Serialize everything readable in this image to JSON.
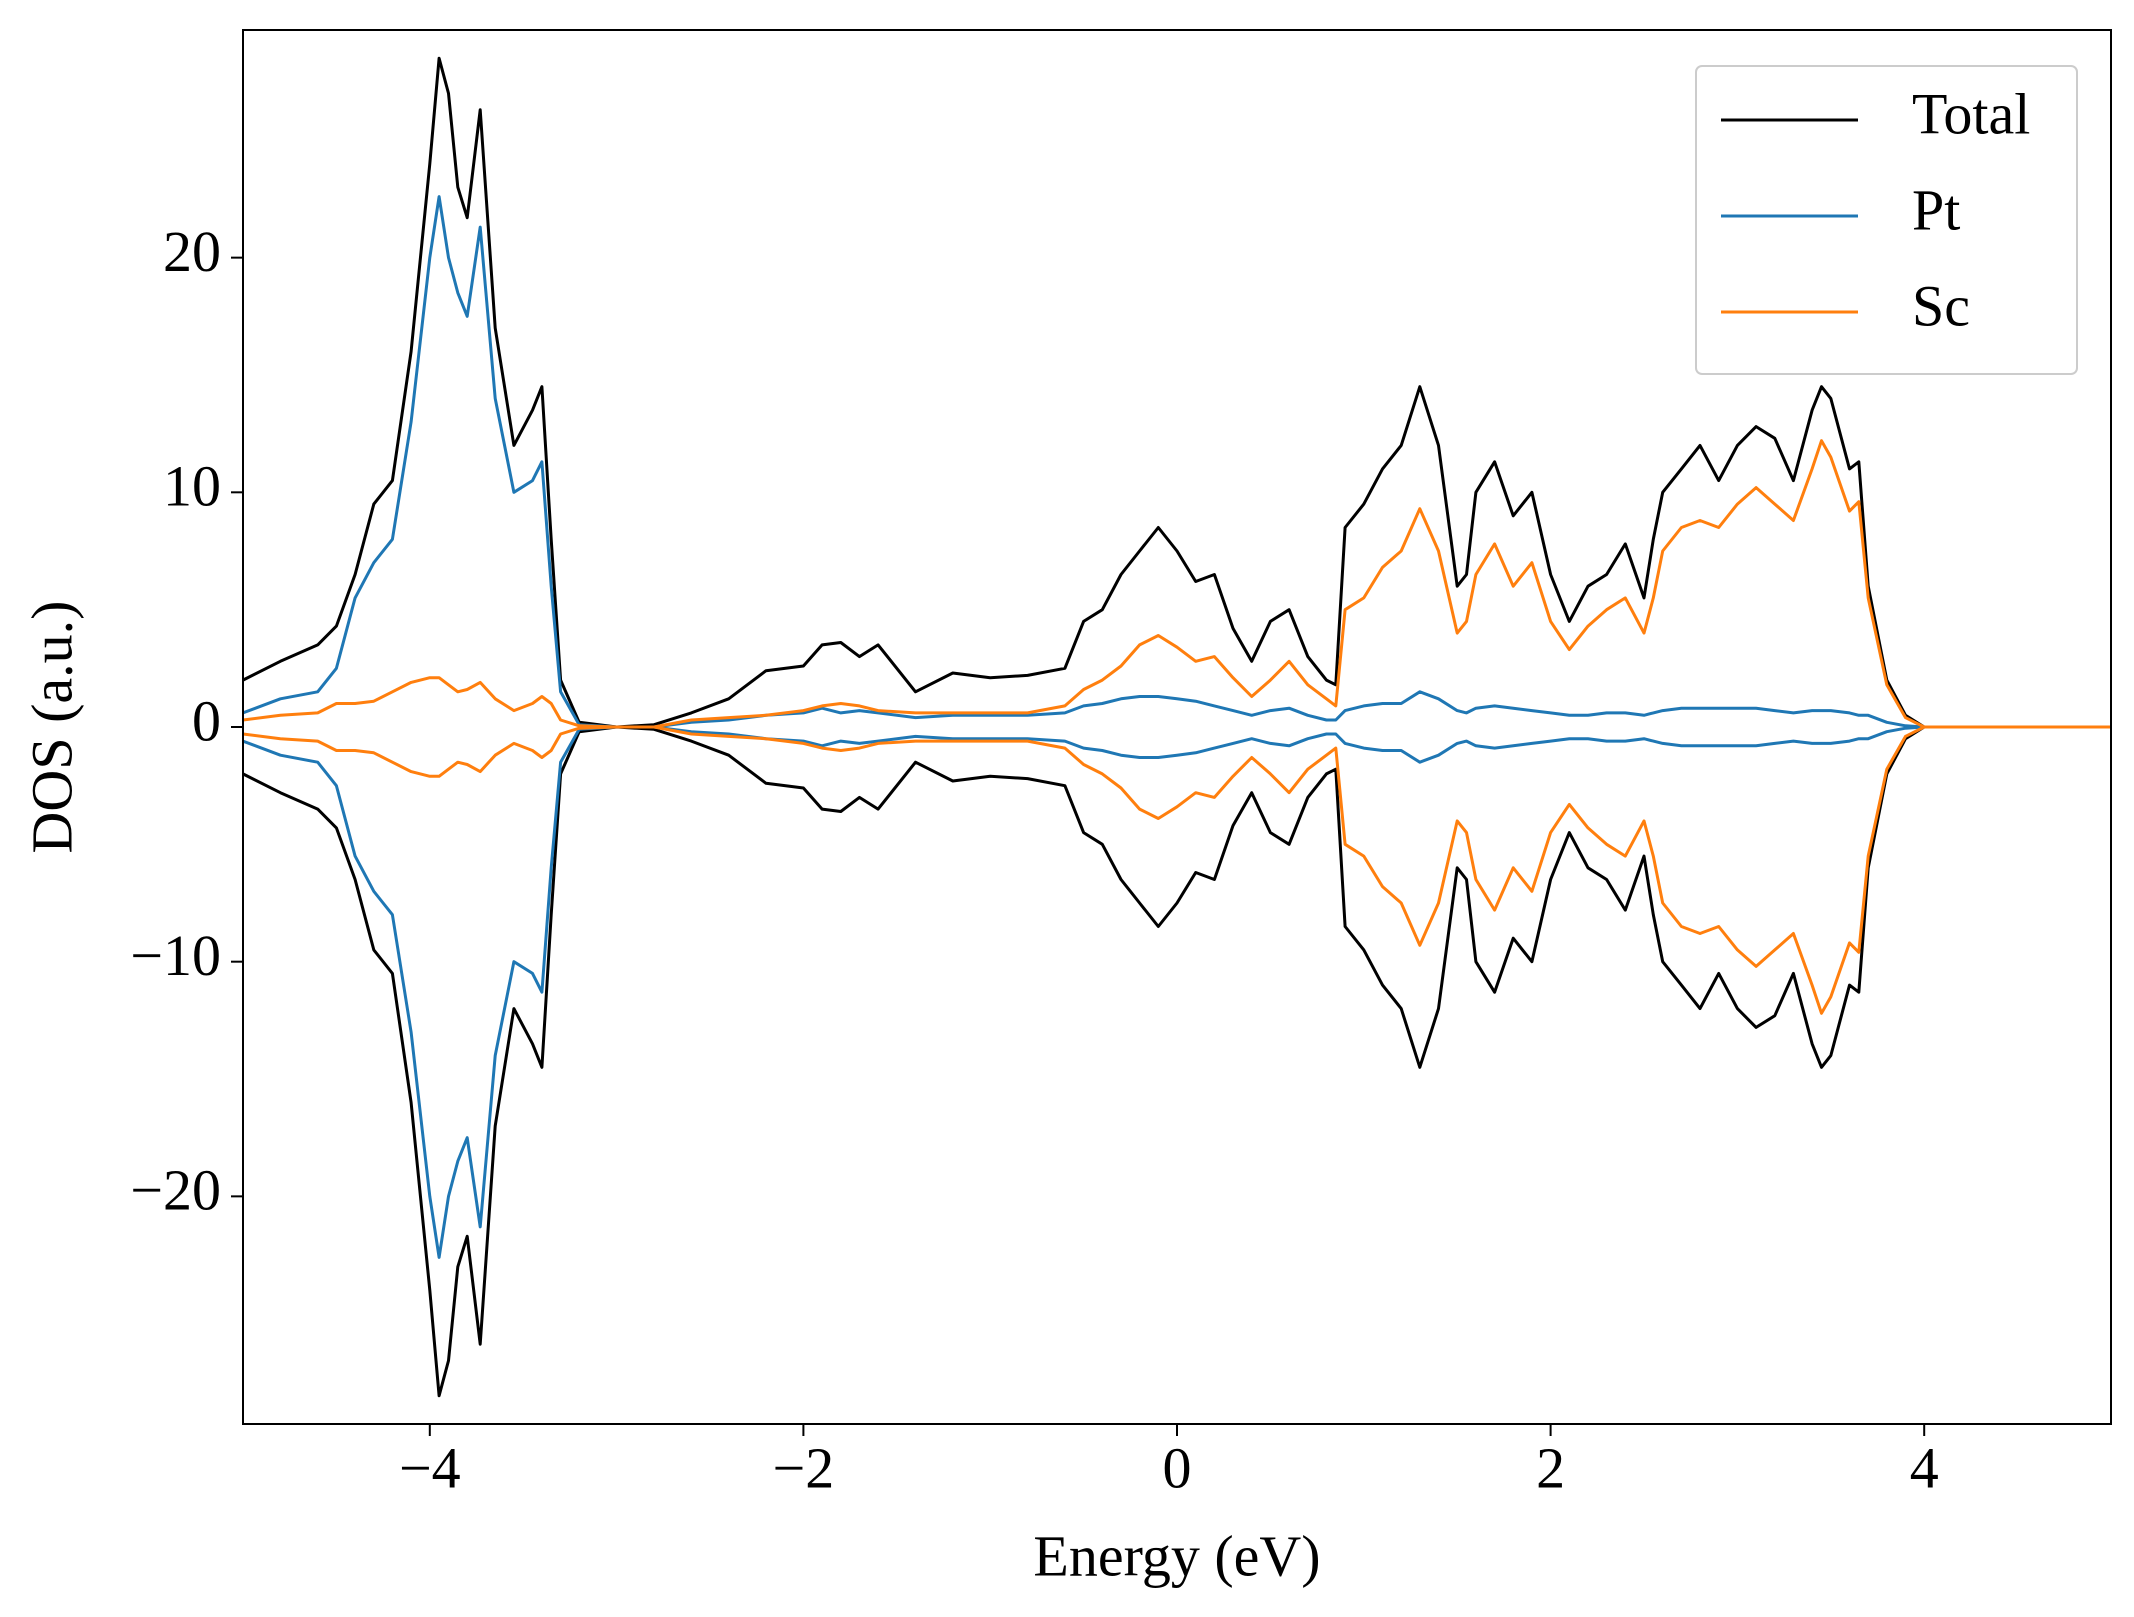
{
  "chart_data": {
    "type": "line",
    "xlabel": "Energy (eV)",
    "ylabel": "DOS (a.u.)",
    "x": [
      -5,
      -4.8,
      -4.6,
      -4.5,
      -4.4,
      -4.3,
      -4.2,
      -4.1,
      -4.0,
      -3.95,
      -3.9,
      -3.85,
      -3.8,
      -3.73,
      -3.65,
      -3.55,
      -3.45,
      -3.4,
      -3.35,
      -3.3,
      -3.2,
      -3.0,
      -2.8,
      -2.6,
      -2.4,
      -2.2,
      -2.0,
      -1.9,
      -1.8,
      -1.7,
      -1.6,
      -1.4,
      -1.2,
      -1.0,
      -0.8,
      -0.6,
      -0.5,
      -0.4,
      -0.3,
      -0.2,
      -0.1,
      0,
      0.1,
      0.2,
      0.3,
      0.4,
      0.5,
      0.6,
      0.7,
      0.8,
      0.85,
      0.9,
      1.0,
      1.1,
      1.2,
      1.3,
      1.4,
      1.5,
      1.55,
      1.6,
      1.7,
      1.8,
      1.9,
      2.0,
      2.1,
      2.2,
      2.3,
      2.4,
      2.5,
      2.55,
      2.6,
      2.7,
      2.8,
      2.9,
      3.0,
      3.1,
      3.2,
      3.3,
      3.4,
      3.45,
      3.5,
      3.6,
      3.65,
      3.7,
      3.8,
      3.9,
      4.0,
      4.2,
      5.0
    ],
    "series": [
      {
        "name": "Total",
        "color": "#000000",
        "values": [
          2.0,
          2.8,
          3.5,
          4.3,
          6.5,
          9.5,
          10.5,
          16,
          24,
          28.5,
          27,
          23,
          21.7,
          26.3,
          17,
          12,
          13.5,
          14.5,
          8,
          2,
          0.2,
          0,
          0.1,
          0.6,
          1.2,
          2.4,
          2.6,
          3.5,
          3.6,
          3.0,
          3.5,
          1.5,
          2.3,
          2.1,
          2.2,
          2.5,
          4.5,
          5.0,
          6.5,
          7.5,
          8.5,
          7.5,
          6.2,
          6.5,
          4.2,
          2.8,
          4.5,
          5.0,
          3.0,
          2.0,
          1.8,
          8.5,
          9.5,
          11,
          12,
          14.5,
          12,
          6,
          6.5,
          10,
          11.3,
          9,
          10,
          6.5,
          4.5,
          6,
          6.5,
          7.8,
          5.5,
          8,
          10,
          11,
          12,
          10.5,
          12,
          12.8,
          12.3,
          10.5,
          13.5,
          14.5,
          14,
          11,
          11.3,
          6,
          2,
          0.5,
          0,
          0,
          0
        ],
        "values_down": [
          -2.0,
          -2.8,
          -3.5,
          -4.3,
          -6.5,
          -9.5,
          -10.5,
          -16,
          -24,
          -28.5,
          -27,
          -23,
          -21.7,
          -26.3,
          -17,
          -12,
          -13.5,
          -14.5,
          -8,
          -2,
          -0.2,
          0,
          -0.1,
          -0.6,
          -1.2,
          -2.4,
          -2.6,
          -3.5,
          -3.6,
          -3.0,
          -3.5,
          -1.5,
          -2.3,
          -2.1,
          -2.2,
          -2.5,
          -4.5,
          -5.0,
          -6.5,
          -7.5,
          -8.5,
          -7.5,
          -6.2,
          -6.5,
          -4.2,
          -2.8,
          -4.5,
          -5.0,
          -3.0,
          -2.0,
          -1.8,
          -8.5,
          -9.5,
          -11,
          -12,
          -14.5,
          -12,
          -6,
          -6.5,
          -10,
          -11.3,
          -9,
          -10,
          -6.5,
          -4.5,
          -6,
          -6.5,
          -7.8,
          -5.5,
          -8,
          -10,
          -11,
          -12,
          -10.5,
          -12,
          -12.8,
          -12.3,
          -10.5,
          -13.5,
          -14.5,
          -14,
          -11,
          -11.3,
          -6,
          -2,
          -0.5,
          0,
          0,
          0
        ]
      },
      {
        "name": "Pt",
        "color": "#1f77b4",
        "values": [
          0.6,
          1.2,
          1.5,
          2.5,
          5.5,
          7,
          8,
          13,
          20,
          22.6,
          20,
          18.5,
          17.5,
          21.3,
          14,
          10,
          10.5,
          11.3,
          6,
          1.5,
          0.1,
          0,
          0,
          0.2,
          0.3,
          0.5,
          0.6,
          0.8,
          0.6,
          0.7,
          0.6,
          0.4,
          0.5,
          0.5,
          0.5,
          0.6,
          0.9,
          1.0,
          1.2,
          1.3,
          1.3,
          1.2,
          1.1,
          0.9,
          0.7,
          0.5,
          0.7,
          0.8,
          0.5,
          0.3,
          0.3,
          0.7,
          0.9,
          1.0,
          1.0,
          1.5,
          1.2,
          0.7,
          0.6,
          0.8,
          0.9,
          0.8,
          0.7,
          0.6,
          0.5,
          0.5,
          0.6,
          0.6,
          0.5,
          0.6,
          0.7,
          0.8,
          0.8,
          0.8,
          0.8,
          0.8,
          0.7,
          0.6,
          0.7,
          0.7,
          0.7,
          0.6,
          0.5,
          0.5,
          0.2,
          0.05,
          0,
          0,
          0
        ],
        "values_down": [
          -0.6,
          -1.2,
          -1.5,
          -2.5,
          -5.5,
          -7,
          -8,
          -13,
          -20,
          -22.6,
          -20,
          -18.5,
          -17.5,
          -21.3,
          -14,
          -10,
          -10.5,
          -11.3,
          -6,
          -1.5,
          -0.1,
          0,
          0,
          -0.2,
          -0.3,
          -0.5,
          -0.6,
          -0.8,
          -0.6,
          -0.7,
          -0.6,
          -0.4,
          -0.5,
          -0.5,
          -0.5,
          -0.6,
          -0.9,
          -1.0,
          -1.2,
          -1.3,
          -1.3,
          -1.2,
          -1.1,
          -0.9,
          -0.7,
          -0.5,
          -0.7,
          -0.8,
          -0.5,
          -0.3,
          -0.3,
          -0.7,
          -0.9,
          -1.0,
          -1.0,
          -1.5,
          -1.2,
          -0.7,
          -0.6,
          -0.8,
          -0.9,
          -0.8,
          -0.7,
          -0.6,
          -0.5,
          -0.5,
          -0.6,
          -0.6,
          -0.5,
          -0.6,
          -0.7,
          -0.8,
          -0.8,
          -0.8,
          -0.8,
          -0.8,
          -0.7,
          -0.6,
          -0.7,
          -0.7,
          -0.7,
          -0.6,
          -0.5,
          -0.5,
          -0.2,
          -0.05,
          0,
          0,
          0
        ]
      },
      {
        "name": "Sc",
        "color": "#ff7f0e",
        "values": [
          0.3,
          0.5,
          0.6,
          1.0,
          1.0,
          1.1,
          1.5,
          1.9,
          2.1,
          2.1,
          1.8,
          1.5,
          1.6,
          1.9,
          1.2,
          0.7,
          1.0,
          1.3,
          1.0,
          0.3,
          0.05,
          0,
          0,
          0.3,
          0.4,
          0.5,
          0.7,
          0.9,
          1.0,
          0.9,
          0.7,
          0.6,
          0.6,
          0.6,
          0.6,
          0.9,
          1.6,
          2.0,
          2.6,
          3.5,
          3.9,
          3.4,
          2.8,
          3.0,
          2.1,
          1.3,
          2.0,
          2.8,
          1.8,
          1.2,
          0.9,
          5,
          5.5,
          6.8,
          7.5,
          9.3,
          7.5,
          4.0,
          4.5,
          6.5,
          7.8,
          6,
          7,
          4.5,
          3.3,
          4.3,
          5.0,
          5.5,
          4.0,
          5.5,
          7.5,
          8.5,
          8.8,
          8.5,
          9.5,
          10.2,
          9.5,
          8.8,
          11,
          12.2,
          11.5,
          9.2,
          9.6,
          5.5,
          1.8,
          0.4,
          0,
          0,
          0
        ],
        "values_down": [
          -0.3,
          -0.5,
          -0.6,
          -1.0,
          -1.0,
          -1.1,
          -1.5,
          -1.9,
          -2.1,
          -2.1,
          -1.8,
          -1.5,
          -1.6,
          -1.9,
          -1.2,
          -0.7,
          -1.0,
          -1.3,
          -1.0,
          -0.3,
          -0.05,
          0,
          0,
          -0.3,
          -0.4,
          -0.5,
          -0.7,
          -0.9,
          -1.0,
          -0.9,
          -0.7,
          -0.6,
          -0.6,
          -0.6,
          -0.6,
          -0.9,
          -1.6,
          -2.0,
          -2.6,
          -3.5,
          -3.9,
          -3.4,
          -2.8,
          -3.0,
          -2.1,
          -1.3,
          -2.0,
          -2.8,
          -1.8,
          -1.2,
          -0.9,
          -5,
          -5.5,
          -6.8,
          -7.5,
          -9.3,
          -7.5,
          -4.0,
          -4.5,
          -6.5,
          -7.8,
          -6,
          -7,
          -4.5,
          -3.3,
          -4.3,
          -5.0,
          -5.5,
          -4.0,
          -5.5,
          -7.5,
          -8.5,
          -8.8,
          -8.5,
          -9.5,
          -10.2,
          -9.5,
          -8.8,
          -11,
          -12.2,
          -11.5,
          -9.2,
          -9.6,
          -5.5,
          -1.8,
          -0.4,
          0,
          0,
          0
        ]
      }
    ],
    "xlim": [
      -5,
      5
    ],
    "xticks": [
      {
        "value": -4,
        "label": "−4"
      },
      {
        "value": -2,
        "label": "−2"
      },
      0,
      2,
      4
    ],
    "ylim": [
      -29.7,
      29.7
    ],
    "yticks": [
      {
        "value": -20,
        "label": "−20"
      },
      {
        "value": -10,
        "label": "−10"
      },
      0,
      10,
      20
    ],
    "legend": "upper right"
  }
}
